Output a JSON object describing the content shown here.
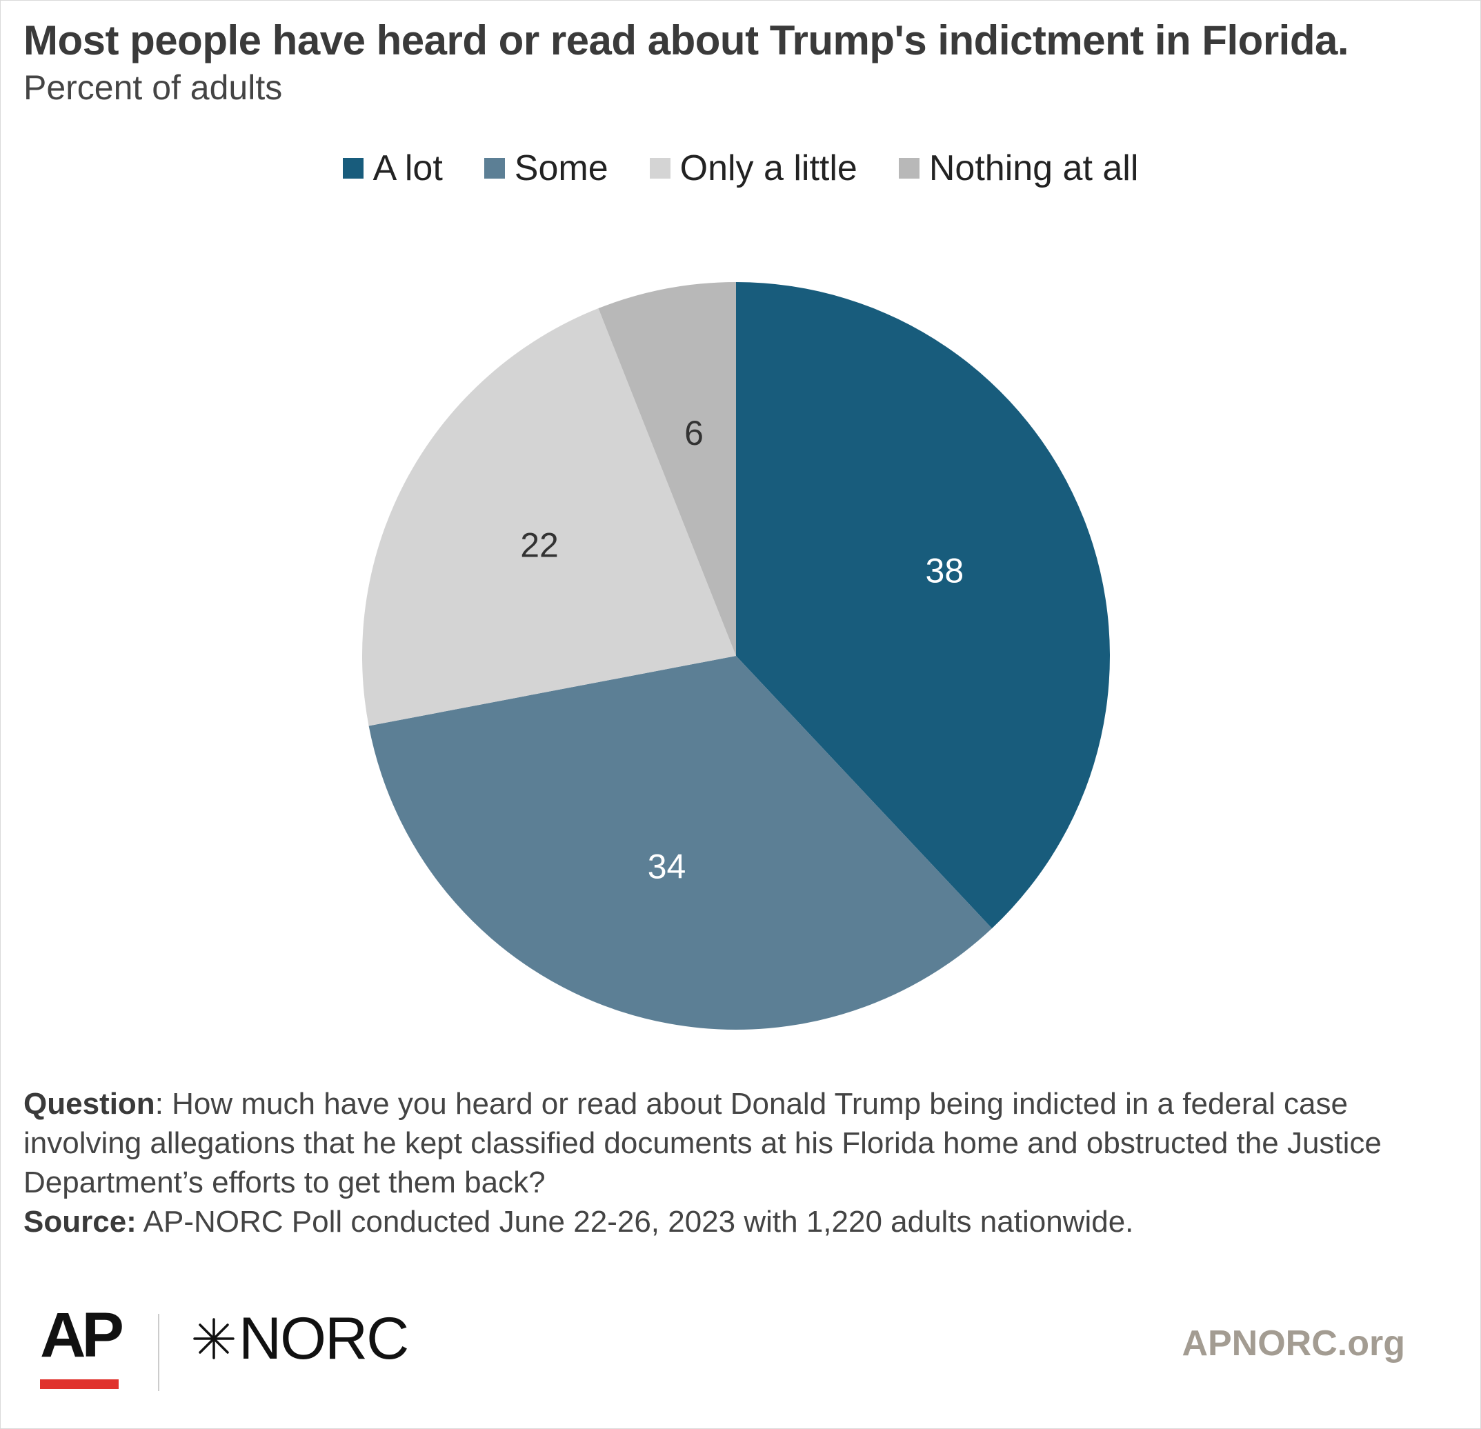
{
  "header": {
    "title": "Most people have heard or read about Trump's indictment in Florida.",
    "subtitle": "Percent of adults"
  },
  "colors": {
    "a_lot": "#185c7c",
    "some": "#5c7f95",
    "only_a_little": "#d4d4d4",
    "nothing_at_all": "#b8b8b8",
    "ap_red": "#e0322d",
    "site_gray": "#a39c92"
  },
  "chart_data": {
    "type": "pie",
    "title": "Most people have heard or read about Trump's indictment in Florida.",
    "subtitle": "Percent of adults",
    "legend_position": "top",
    "series": [
      {
        "name": "A lot",
        "value": 38,
        "color": "#185c7c",
        "label_color": "#ffffff"
      },
      {
        "name": "Some",
        "value": 34,
        "color": "#5c7f95",
        "label_color": "#ffffff"
      },
      {
        "name": "Only a little",
        "value": 22,
        "color": "#d4d4d4",
        "label_color": "#333333"
      },
      {
        "name": "Nothing at all",
        "value": 6,
        "color": "#b8b8b8",
        "label_color": "#333333"
      }
    ]
  },
  "notes": {
    "question_label": "Question",
    "question_text": ": How much have you heard or read about Donald Trump being indicted in a federal case involving allegations that he kept classified documents at his Florida home and obstructed the Justice Department’s efforts to get them back?",
    "source_label": "Source:",
    "source_text": " AP-NORC Poll conducted June 22-26, 2023 with 1,220 adults nationwide."
  },
  "footer": {
    "ap_logo": "AP",
    "norc_logo": "NORC",
    "norc_icon": "star-burst-icon",
    "site": "APNORC.org"
  }
}
